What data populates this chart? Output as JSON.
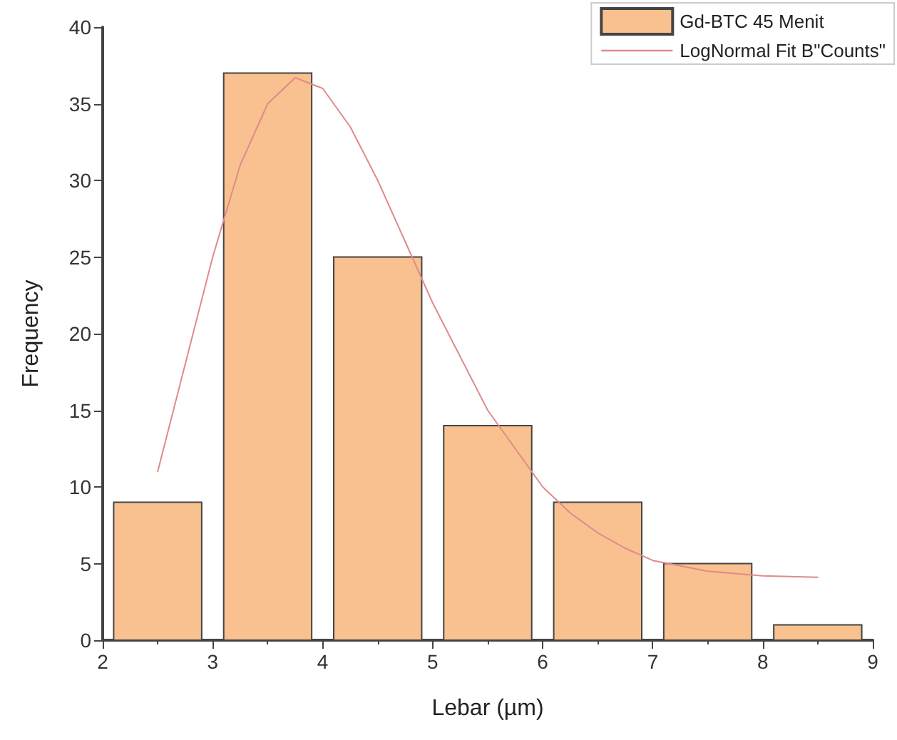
{
  "chart_data": {
    "type": "histogram",
    "xlabel": "Lebar (µm)",
    "ylabel": "Frequency",
    "series": [
      {
        "name": "Gd-BTC 45 Menit",
        "color": "#f9c18f",
        "bins": [
          2,
          3,
          4,
          5,
          6,
          7,
          8,
          9
        ],
        "values": [
          9,
          37,
          25,
          14,
          9,
          5,
          1
        ]
      },
      {
        "type": "line",
        "name": "LogNormal Fit B\"Counts\"",
        "color": "#e08a8a",
        "x": [
          2.5,
          2.75,
          3,
          3.25,
          3.5,
          3.75,
          4,
          4.25,
          4.5,
          4.75,
          5,
          5.25,
          5.5,
          5.75,
          6,
          6.25,
          6.5,
          6.75,
          7,
          7.5,
          8,
          8.5
        ],
        "values": [
          11,
          18,
          25,
          31,
          35,
          36.7,
          36,
          33.5,
          30,
          26,
          22,
          18.5,
          15,
          12.5,
          10,
          8.3,
          7,
          6,
          5.2,
          4.5,
          4.2,
          4.1
        ]
      }
    ],
    "xlim": [
      2,
      9
    ],
    "xticks": [
      2,
      3,
      4,
      5,
      6,
      7,
      8,
      9
    ],
    "ylim": [
      0,
      40
    ],
    "yticks": [
      0,
      5,
      10,
      15,
      20,
      25,
      30,
      35,
      40
    ],
    "grid": false,
    "legend": "top right",
    "marker": "none",
    "line_style": "solid"
  }
}
